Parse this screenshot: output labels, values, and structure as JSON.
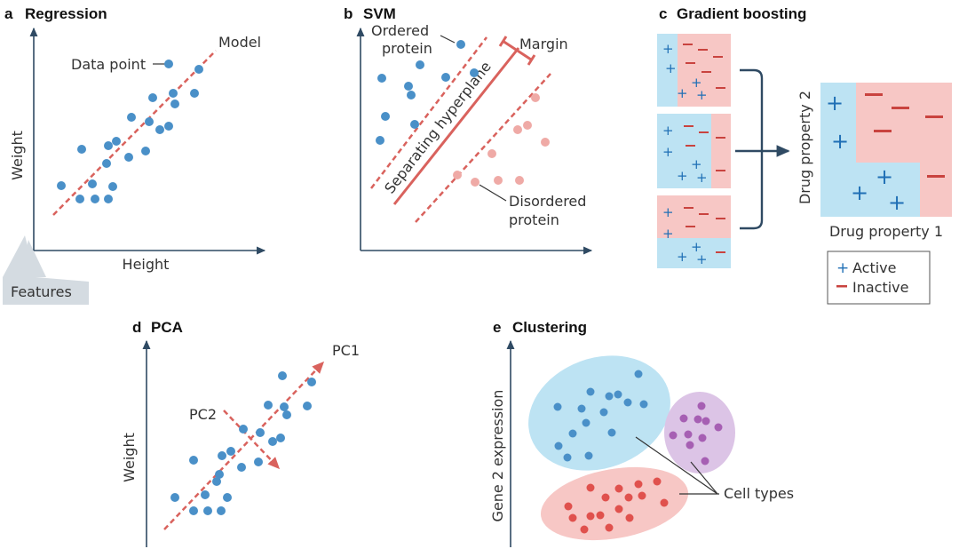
{
  "colors": {
    "blue": "#4a90c8",
    "red_point": "#efaaa6",
    "red_line": "#d9625d",
    "purple": "#a65fb3",
    "cell_blue_bg": "#bde3f3",
    "cell_red_bg": "#f7c7c5",
    "cluster_purple_bg": "#dcc4e6",
    "axis": "#2f4a63"
  },
  "panel_a": {
    "letter": "a",
    "title": "Regression",
    "model_label": "Model",
    "data_point_label": "Data point",
    "x_axis_label": "Height",
    "y_axis_label": "Weight",
    "features_label": "Features"
  },
  "panel_b": {
    "letter": "b",
    "title": "SVM",
    "ordered_label_1": "Ordered",
    "ordered_label_2": "protein",
    "margin_label": "Margin",
    "hyperplane_label": "Separating hyperplane",
    "disordered_label_1": "Disordered",
    "disordered_label_2": "protein"
  },
  "panel_c": {
    "letter": "c",
    "title": "Gradient boosting",
    "y_axis_label": "Drug property 2",
    "x_axis_label": "Drug property 1",
    "legend_active": "Active",
    "legend_inactive": "Inactive"
  },
  "panel_d": {
    "letter": "d",
    "title": "PCA",
    "pc1_label": "PC1",
    "pc2_label": "PC2",
    "y_axis_label": "Weight"
  },
  "panel_e": {
    "letter": "e",
    "title": "Clustering",
    "y_axis_label": "Gene 2 expression",
    "cell_types_label": "Cell types"
  }
}
